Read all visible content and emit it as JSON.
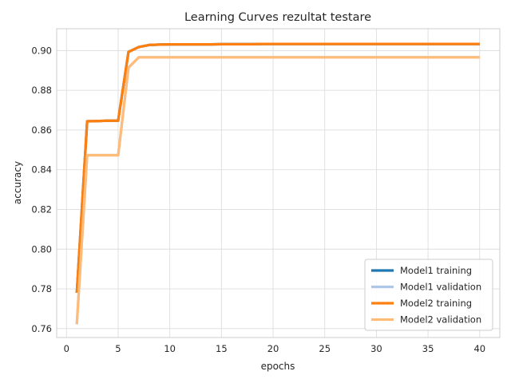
{
  "chart_data": {
    "type": "line",
    "title": "Learning Curves rezultat testare",
    "xlabel": "epochs",
    "ylabel": "accuracy",
    "xlim": [
      -0.95,
      41.95
    ],
    "ylim": [
      0.7555,
      0.911
    ],
    "xticks": [
      0,
      5,
      10,
      15,
      20,
      25,
      30,
      35,
      40
    ],
    "xtick_labels": [
      "0",
      "5",
      "10",
      "15",
      "20",
      "25",
      "30",
      "35",
      "40"
    ],
    "yticks": [
      0.76,
      0.78,
      0.8,
      0.82,
      0.84,
      0.86,
      0.88,
      0.9
    ],
    "ytick_labels": [
      "0.76",
      "0.78",
      "0.80",
      "0.82",
      "0.84",
      "0.86",
      "0.88",
      "0.90"
    ],
    "grid": true,
    "legend_position": "lower-right",
    "series": [
      {
        "name": "Model1 training",
        "color": "#1f77b4",
        "x": [
          1,
          2,
          3,
          4,
          5,
          6,
          7,
          8,
          9,
          10,
          11,
          12,
          13,
          14,
          15,
          16,
          17,
          18,
          19,
          20,
          21,
          22,
          23,
          24,
          25,
          26,
          27,
          28,
          29,
          30,
          31,
          32,
          33,
          34,
          35,
          36,
          37,
          38,
          39,
          40
        ],
        "y": [
          0.778,
          0.8644,
          0.8645,
          0.8647,
          0.8647,
          0.8993,
          0.9018,
          0.9028,
          0.903,
          0.9031,
          0.9031,
          0.9031,
          0.9031,
          0.9031,
          0.9032,
          0.9032,
          0.9032,
          0.9032,
          0.9033,
          0.9033,
          0.9033,
          0.9033,
          0.9033,
          0.9033,
          0.9033,
          0.9033,
          0.9033,
          0.9033,
          0.9033,
          0.9033,
          0.9033,
          0.9033,
          0.9033,
          0.9033,
          0.9033,
          0.9033,
          0.9033,
          0.9033,
          0.9033,
          0.9033
        ]
      },
      {
        "name": "Model1 validation",
        "color": "#aec7e8",
        "x": [
          1,
          2,
          3,
          4,
          5,
          6,
          7,
          8,
          9,
          10,
          11,
          12,
          13,
          14,
          15,
          16,
          17,
          18,
          19,
          20,
          21,
          22,
          23,
          24,
          25,
          26,
          27,
          28,
          29,
          30,
          31,
          32,
          33,
          34,
          35,
          36,
          37,
          38,
          39,
          40
        ],
        "y": [
          0.7622,
          0.8473,
          0.8473,
          0.8473,
          0.8473,
          0.8914,
          0.8966,
          0.8966,
          0.8966,
          0.8966,
          0.8966,
          0.8966,
          0.8966,
          0.8966,
          0.8966,
          0.8966,
          0.8966,
          0.8966,
          0.8966,
          0.8966,
          0.8966,
          0.8966,
          0.8966,
          0.8966,
          0.8966,
          0.8966,
          0.8966,
          0.8966,
          0.8966,
          0.8966,
          0.8966,
          0.8966,
          0.8966,
          0.8966,
          0.8966,
          0.8966,
          0.8966,
          0.8966,
          0.8966,
          0.8966
        ]
      },
      {
        "name": "Model2 training",
        "color": "#ff7f0e",
        "x": [
          1,
          2,
          3,
          4,
          5,
          6,
          7,
          8,
          9,
          10,
          11,
          12,
          13,
          14,
          15,
          16,
          17,
          18,
          19,
          20,
          21,
          22,
          23,
          24,
          25,
          26,
          27,
          28,
          29,
          30,
          31,
          32,
          33,
          34,
          35,
          36,
          37,
          38,
          39,
          40
        ],
        "y": [
          0.778,
          0.8644,
          0.8645,
          0.8647,
          0.8647,
          0.8993,
          0.9018,
          0.9028,
          0.903,
          0.9031,
          0.9031,
          0.9031,
          0.9031,
          0.9031,
          0.9032,
          0.9032,
          0.9032,
          0.9032,
          0.9033,
          0.9033,
          0.9033,
          0.9033,
          0.9033,
          0.9033,
          0.9033,
          0.9033,
          0.9033,
          0.9033,
          0.9033,
          0.9033,
          0.9033,
          0.9033,
          0.9033,
          0.9033,
          0.9033,
          0.9033,
          0.9033,
          0.9033,
          0.9033,
          0.9033
        ]
      },
      {
        "name": "Model2 validation",
        "color": "#ffbb78",
        "x": [
          1,
          2,
          3,
          4,
          5,
          6,
          7,
          8,
          9,
          10,
          11,
          12,
          13,
          14,
          15,
          16,
          17,
          18,
          19,
          20,
          21,
          22,
          23,
          24,
          25,
          26,
          27,
          28,
          29,
          30,
          31,
          32,
          33,
          34,
          35,
          36,
          37,
          38,
          39,
          40
        ],
        "y": [
          0.7622,
          0.8473,
          0.8473,
          0.8473,
          0.8473,
          0.8914,
          0.8966,
          0.8966,
          0.8966,
          0.8966,
          0.8966,
          0.8966,
          0.8966,
          0.8966,
          0.8966,
          0.8966,
          0.8966,
          0.8966,
          0.8966,
          0.8966,
          0.8966,
          0.8966,
          0.8966,
          0.8966,
          0.8966,
          0.8966,
          0.8966,
          0.8966,
          0.8966,
          0.8966,
          0.8966,
          0.8966,
          0.8966,
          0.8966,
          0.8966,
          0.8966,
          0.8966,
          0.8966,
          0.8966,
          0.8966
        ]
      }
    ]
  }
}
